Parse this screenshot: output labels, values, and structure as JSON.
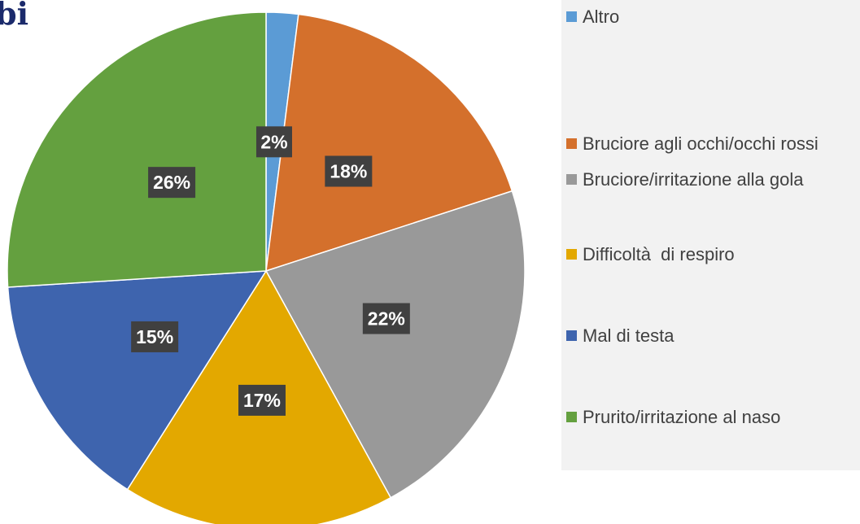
{
  "chart_data": {
    "type": "pie",
    "title": "bi",
    "categories": [
      "Altro",
      "Bruciore agli occhi/occhi rossi",
      "Bruciore/irritazione alla gola",
      "Difficoltà  di respiro",
      "Mal di testa",
      "Prurito/irritazione al naso"
    ],
    "values": [
      2,
      18,
      22,
      17,
      15,
      26
    ],
    "value_labels": [
      "2%",
      "18%",
      "22%",
      "17%",
      "15%",
      "26%"
    ],
    "colors": [
      "#5b9bd5",
      "#d4702c",
      "#999999",
      "#e3a800",
      "#3e64ae",
      "#64a03f"
    ],
    "legend": "right"
  }
}
